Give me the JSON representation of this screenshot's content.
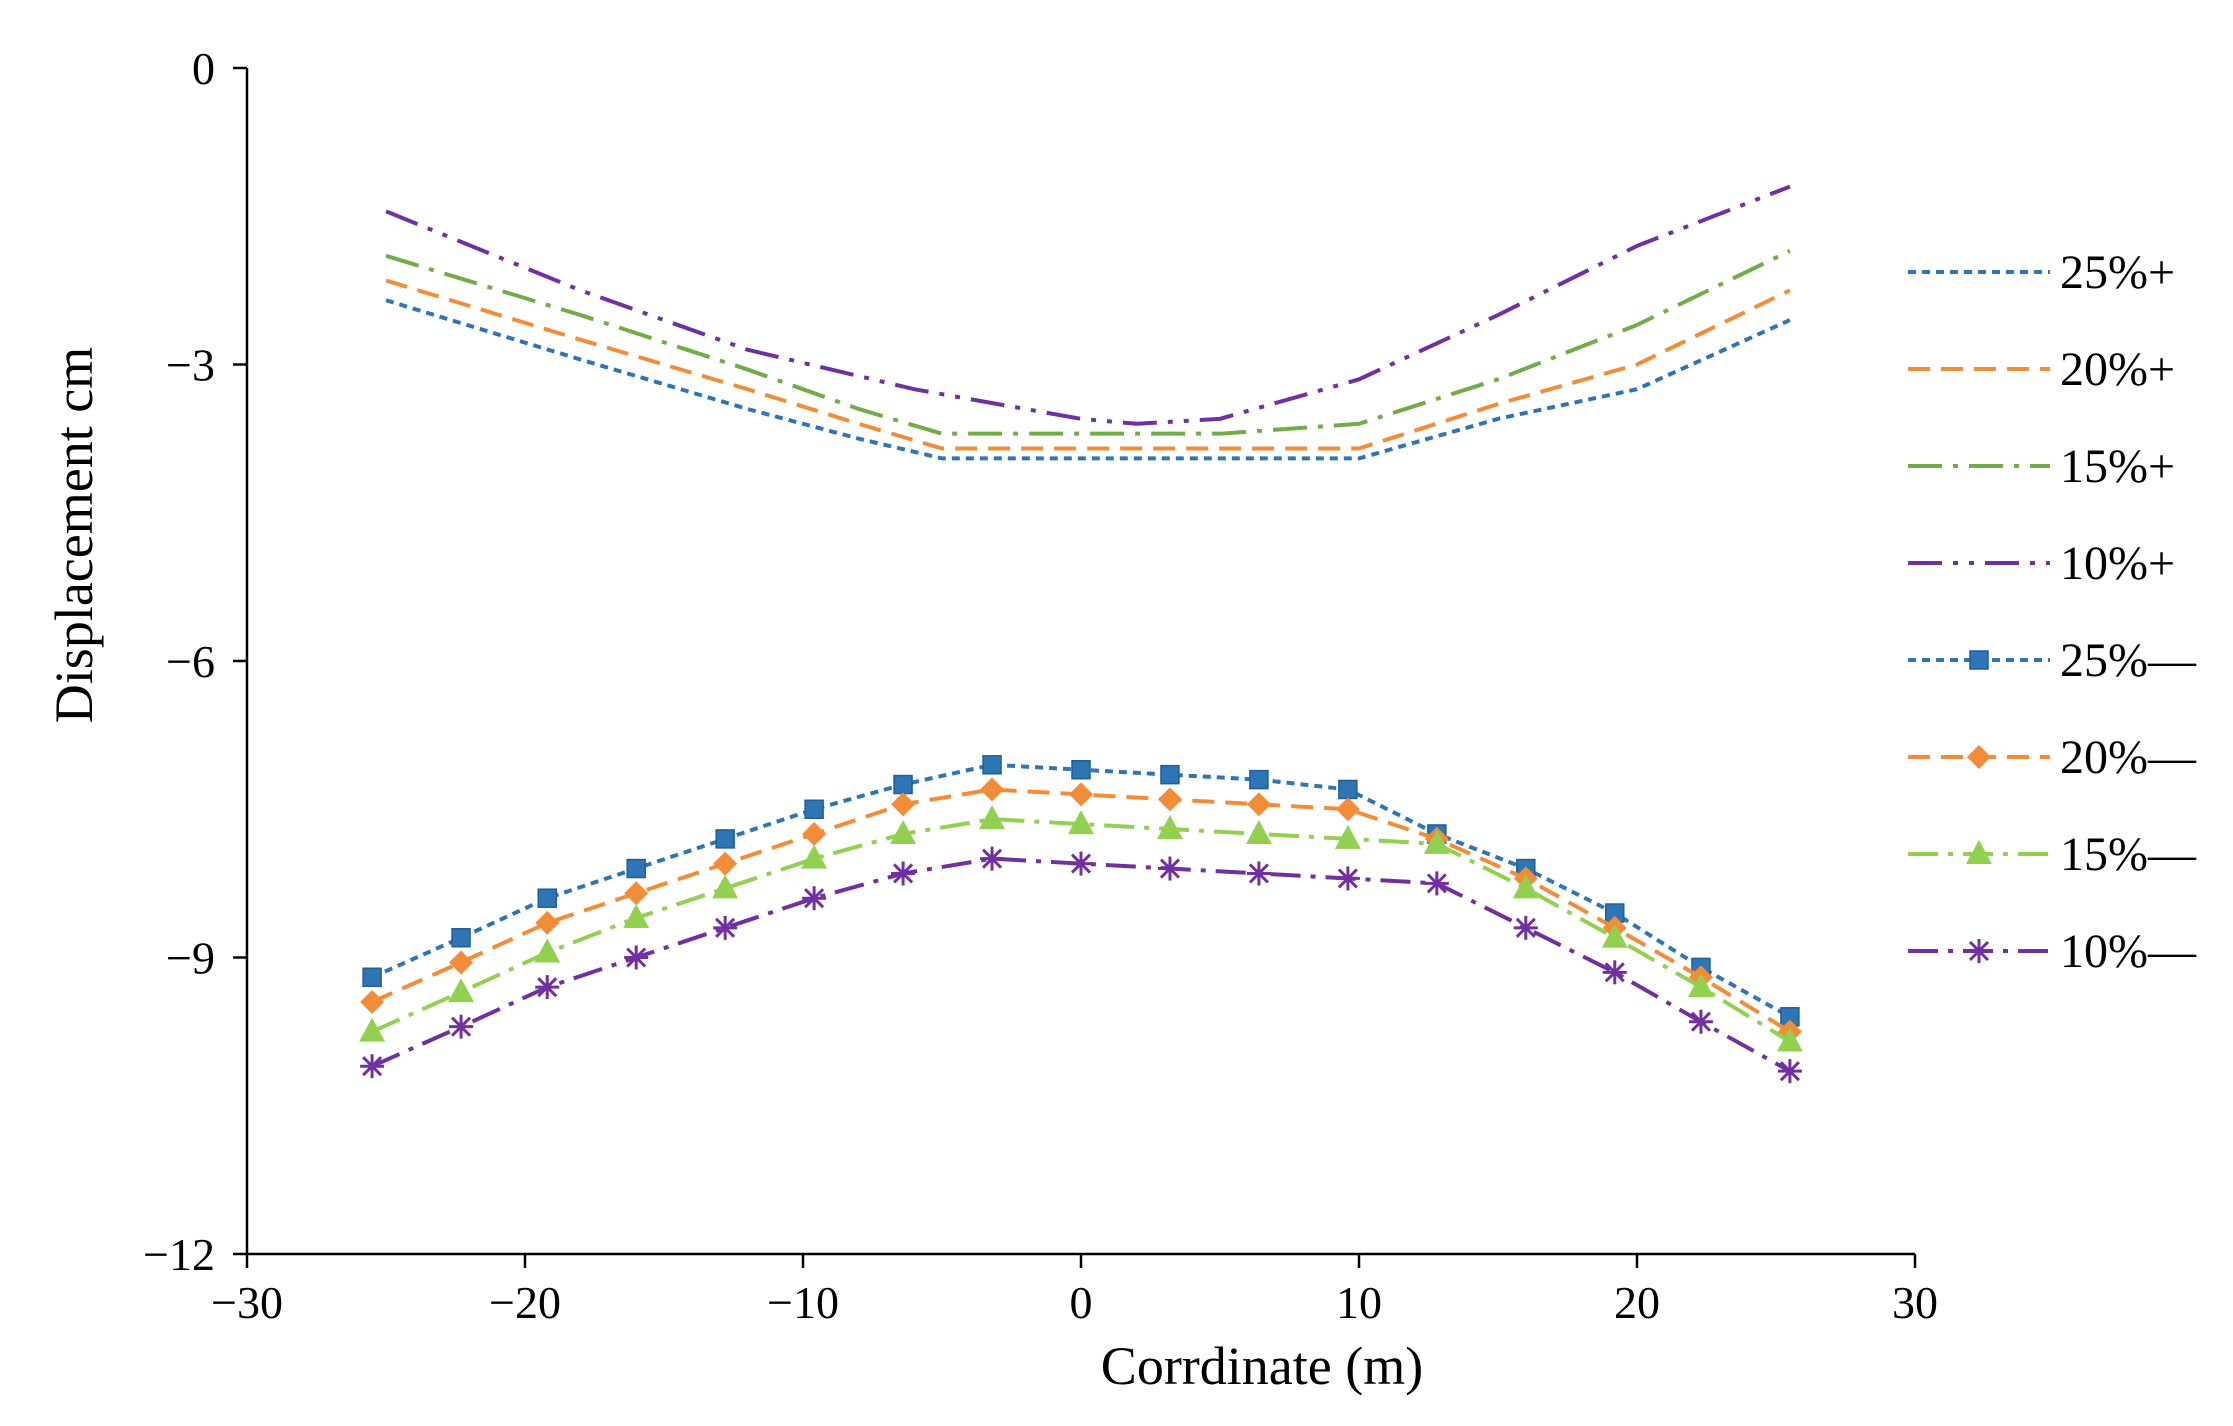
{
  "chart_data": {
    "type": "line",
    "title": "",
    "xlabel": "Corrdinate (m)",
    "ylabel": "Displacement cm",
    "xlim": [
      -30,
      30
    ],
    "ylim": [
      -12,
      0
    ],
    "xticks": [
      -30,
      -20,
      -10,
      0,
      10,
      20,
      30
    ],
    "yticks": [
      0,
      -3,
      -6,
      -9,
      -12
    ],
    "xtick_labels": [
      "−30",
      "−20",
      "−10",
      "0",
      "10",
      "20",
      "30"
    ],
    "ytick_labels": [
      "0",
      "−3",
      "−6",
      "−9",
      "−12"
    ],
    "legend_position": "right",
    "series": [
      {
        "name": "25%+",
        "color": "#2e75b6",
        "dash": "8,6",
        "marker": "none",
        "x": [
          -25,
          -18,
          -12,
          -8,
          -5,
          0,
          5,
          10,
          15,
          20,
          25.5
        ],
        "y": [
          -2.35,
          -2.95,
          -3.45,
          -3.75,
          -3.95,
          -3.95,
          -3.95,
          -3.95,
          -3.55,
          -3.25,
          -2.55
        ]
      },
      {
        "name": "20%+",
        "color": "#f28c37",
        "dash": "22,11",
        "marker": "none",
        "x": [
          -25,
          -18,
          -12,
          -8,
          -5,
          0,
          5,
          10,
          15,
          20,
          25.5
        ],
        "y": [
          -2.15,
          -2.75,
          -3.25,
          -3.6,
          -3.85,
          -3.85,
          -3.85,
          -3.85,
          -3.4,
          -3.0,
          -2.25
        ]
      },
      {
        "name": "15%+",
        "color": "#70ad47",
        "dash": "34,11,5,11",
        "marker": "none",
        "x": [
          -25,
          -18,
          -12,
          -8,
          -5,
          0,
          5,
          10,
          15,
          20,
          25.5
        ],
        "y": [
          -1.9,
          -2.5,
          -3.05,
          -3.45,
          -3.7,
          -3.7,
          -3.7,
          -3.6,
          -3.15,
          -2.6,
          -1.85
        ]
      },
      {
        "name": "10%+",
        "color": "#7030a0",
        "dash": "34,11,5,11,5,11",
        "marker": "none",
        "x": [
          -25,
          -18,
          -12,
          -6,
          0,
          2,
          5,
          10,
          15,
          20,
          25.5
        ],
        "y": [
          -1.45,
          -2.25,
          -2.85,
          -3.25,
          -3.55,
          -3.6,
          -3.55,
          -3.15,
          -2.5,
          -1.8,
          -1.2
        ]
      },
      {
        "name": "25%—",
        "color": "#2e75b6",
        "dash": "8,6",
        "marker": "square",
        "x": [
          -25.5,
          -22.3,
          -19.2,
          -16,
          -12.8,
          -9.6,
          -6.4,
          -3.2,
          0,
          3.2,
          6.4,
          9.6,
          12.8,
          16,
          19.2,
          22.3,
          25.5
        ],
        "y": [
          -9.2,
          -8.8,
          -8.4,
          -8.1,
          -7.8,
          -7.5,
          -7.25,
          -7.05,
          -7.1,
          -7.15,
          -7.2,
          -7.3,
          -7.75,
          -8.1,
          -8.55,
          -9.1,
          -9.6
        ]
      },
      {
        "name": "20%—",
        "color": "#f28c37",
        "dash": "22,11",
        "marker": "diamond",
        "x": [
          -25.5,
          -22.3,
          -19.2,
          -16,
          -12.8,
          -9.6,
          -6.4,
          -3.2,
          0,
          3.2,
          6.4,
          9.6,
          12.8,
          16,
          19.2,
          22.3,
          25.5
        ],
        "y": [
          -9.45,
          -9.05,
          -8.65,
          -8.35,
          -8.05,
          -7.75,
          -7.45,
          -7.3,
          -7.35,
          -7.4,
          -7.45,
          -7.5,
          -7.8,
          -8.2,
          -8.7,
          -9.2,
          -9.75
        ]
      },
      {
        "name": "15%—",
        "color": "#92d050",
        "dash": "30,10,5,10",
        "marker": "triangle",
        "x": [
          -25.5,
          -22.3,
          -19.2,
          -16,
          -12.8,
          -9.6,
          -6.4,
          -3.2,
          0,
          3.2,
          6.4,
          9.6,
          12.8,
          16,
          19.2,
          22.3,
          25.5
        ],
        "y": [
          -9.75,
          -9.35,
          -8.95,
          -8.6,
          -8.3,
          -8.0,
          -7.75,
          -7.6,
          -7.65,
          -7.7,
          -7.75,
          -7.8,
          -7.85,
          -8.3,
          -8.8,
          -9.3,
          -9.85
        ]
      },
      {
        "name": "10%—",
        "color": "#7030a0",
        "dash": "30,10,5,10",
        "marker": "asterisk",
        "x": [
          -25.5,
          -22.3,
          -19.2,
          -16,
          -12.8,
          -9.6,
          -6.4,
          -3.2,
          0,
          3.2,
          6.4,
          9.6,
          12.8,
          16,
          19.2,
          22.3,
          25.5
        ],
        "y": [
          -10.1,
          -9.7,
          -9.3,
          -9.0,
          -8.7,
          -8.4,
          -8.15,
          -8.0,
          -8.05,
          -8.1,
          -8.15,
          -8.2,
          -8.25,
          -8.7,
          -9.15,
          -9.65,
          -10.15
        ]
      }
    ]
  }
}
